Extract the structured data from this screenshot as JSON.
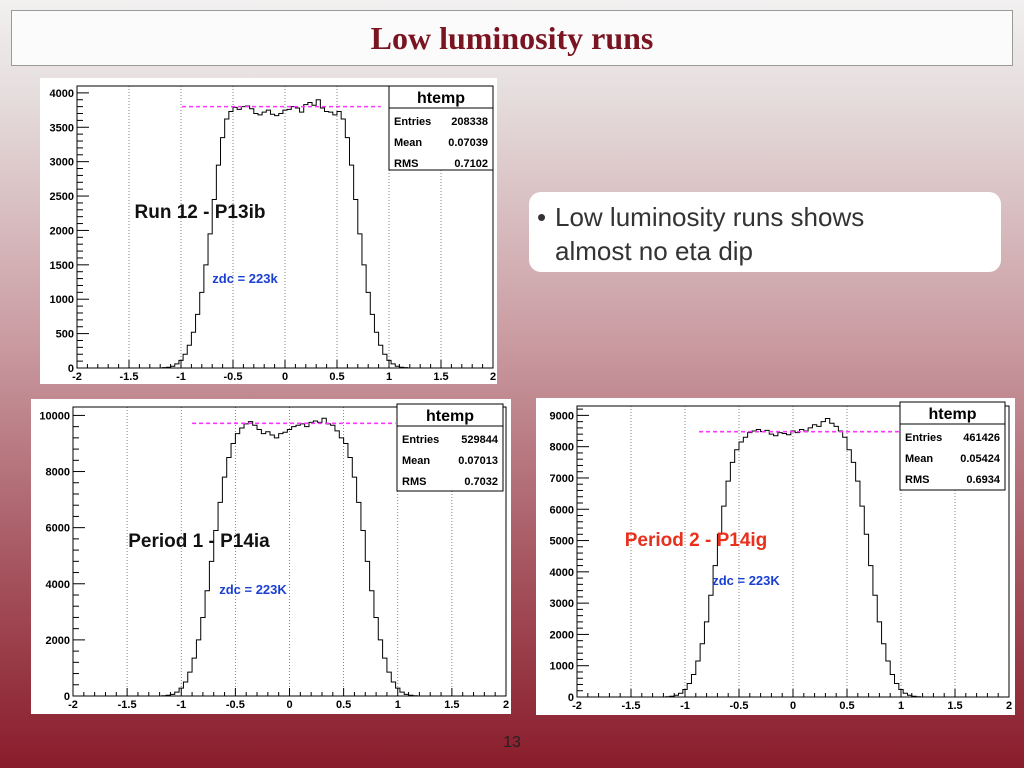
{
  "slide": {
    "title": "Low luminosity runs",
    "bullet": [
      "Low luminosity runs shows",
      "almost no eta dip"
    ],
    "page_number": "13"
  },
  "chart_data": [
    {
      "type": "bar",
      "label": "Run 12 - P13ib",
      "label_color": "#111111",
      "annotation": "zdc = 223k",
      "annotation_color": "#1a3fd1",
      "stats": {
        "title": "htemp",
        "rows": [
          [
            "Entries",
            "208338"
          ],
          [
            "Mean",
            "0.07039"
          ],
          [
            "RMS",
            "0.7102"
          ]
        ]
      },
      "xlim": [
        -2,
        2
      ],
      "ylim": [
        0,
        4100
      ],
      "xticks": [
        -2,
        -1.5,
        -1,
        -0.5,
        0,
        0.5,
        1,
        1.5,
        2
      ],
      "yticks": [
        0,
        500,
        1000,
        1500,
        2000,
        2500,
        3000,
        3500,
        4000
      ],
      "vgrid": [
        -1.5,
        -1,
        -0.5,
        0,
        0.5,
        1,
        1.5
      ],
      "plateau": {
        "y": 3800,
        "x": [
          -0.99,
          0.92
        ],
        "color": "#ff33ff"
      },
      "tail": [
        5,
        10,
        25,
        60,
        110,
        200,
        330,
        520,
        780,
        1100,
        1500,
        1950,
        2450,
        2950,
        3350,
        3620,
        3730
      ],
      "plateau_values": [
        3790,
        3760,
        3800,
        3810,
        3770,
        3700,
        3680,
        3720,
        3750,
        3690,
        3670,
        3700,
        3750,
        3760,
        3800,
        3780,
        3720,
        3830,
        3860,
        3820,
        3900,
        3780,
        3730,
        3720,
        3680
      ]
    },
    {
      "type": "bar",
      "label": "Period 1 - P14ia",
      "label_color": "#111111",
      "annotation": "zdc = 223K",
      "annotation_color": "#1a3fd1",
      "stats": {
        "title": "htemp",
        "rows": [
          [
            "Entries",
            "529844"
          ],
          [
            "Mean",
            "0.07013"
          ],
          [
            "RMS",
            "0.7032"
          ]
        ]
      },
      "xlim": [
        -2,
        2
      ],
      "ylim": [
        0,
        10300
      ],
      "xticks": [
        -2,
        -1.5,
        -1,
        -0.5,
        0,
        0.5,
        1,
        1.5,
        2
      ],
      "yticks": [
        0,
        2000,
        4000,
        6000,
        8000,
        10000
      ],
      "vgrid": [
        -1.5,
        -1,
        -0.5,
        0,
        0.5,
        1,
        1.5
      ],
      "plateau": {
        "y": 9720,
        "x": [
          -0.9,
          0.98
        ],
        "color": "#ff33ff"
      },
      "tail": [
        10,
        25,
        60,
        140,
        280,
        500,
        850,
        1350,
        2000,
        2800,
        3750,
        4800,
        5900,
        6900,
        7800,
        8500,
        9000
      ],
      "plateau_values": [
        9350,
        9550,
        9700,
        9780,
        9650,
        9500,
        9350,
        9420,
        9300,
        9200,
        9350,
        9400,
        9500,
        9600,
        9650,
        9700,
        9600,
        9750,
        9800,
        9750,
        9900,
        9700,
        9650,
        9450,
        9200
      ]
    },
    {
      "type": "bar",
      "label": "Period 2 - P14ig",
      "label_color": "#e8301c",
      "annotation": "zdc = 223K",
      "annotation_color": "#1a3fd1",
      "stats": {
        "title": "htemp",
        "rows": [
          [
            "Entries",
            "461426"
          ],
          [
            "Mean",
            "0.05424"
          ],
          [
            "RMS",
            "0.6934"
          ]
        ]
      },
      "xlim": [
        -2,
        2
      ],
      "ylim": [
        0,
        9300
      ],
      "xticks": [
        -2,
        -1.5,
        -1,
        -0.5,
        0,
        0.5,
        1,
        1.5,
        2
      ],
      "yticks": [
        0,
        1000,
        2000,
        3000,
        4000,
        5000,
        6000,
        7000,
        8000,
        9000
      ],
      "vgrid": [
        -1.5,
        -1,
        -0.5,
        0,
        0.5,
        1,
        1.5
      ],
      "plateau": {
        "y": 8480,
        "x": [
          -0.87,
          0.98
        ],
        "color": "#ff33ff"
      },
      "tail": [
        10,
        25,
        55,
        120,
        240,
        430,
        720,
        1150,
        1700,
        2400,
        3250,
        4200,
        5200,
        6100,
        6900,
        7500,
        7900
      ],
      "plateau_values": [
        8150,
        8300,
        8450,
        8500,
        8550,
        8480,
        8520,
        8400,
        8350,
        8450,
        8420,
        8380,
        8500,
        8450,
        8550,
        8500,
        8600,
        8700,
        8650,
        8800,
        8900,
        8750,
        8650,
        8500,
        8300
      ]
    }
  ]
}
